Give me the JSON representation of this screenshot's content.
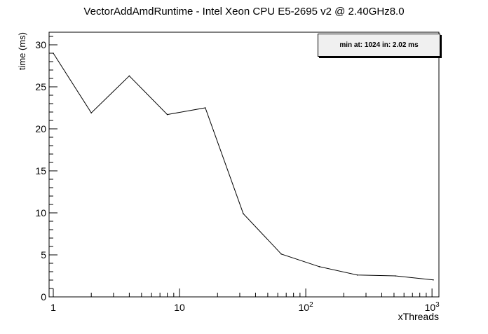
{
  "chart_data": {
    "type": "line",
    "title": "VectorAddAmdRuntime - Intel Xeon CPU E5-2695 v2 @ 2.40GHz8.0",
    "xlabel": "xThreads",
    "ylabel": "time (ms)",
    "x_scale": "log",
    "xlim": [
      1,
      1024
    ],
    "ylim": [
      0,
      31.5
    ],
    "x_ticks": [
      {
        "value": 1,
        "label": "1"
      },
      {
        "value": 10,
        "label": "10"
      },
      {
        "value": 100,
        "label": "10",
        "exp": "2"
      },
      {
        "value": 1000,
        "label": "10",
        "exp": "3"
      }
    ],
    "y_ticks": [
      0,
      5,
      10,
      15,
      20,
      25,
      30
    ],
    "grid": false,
    "legend_placement": "top-right",
    "annotation": "min at: 1024 in: 2.02 ms",
    "series": [
      {
        "x": [
          1,
          2,
          4,
          8,
          16,
          32,
          64,
          128,
          256,
          512,
          1024
        ],
        "y": [
          29.0,
          21.9,
          26.3,
          21.7,
          22.5,
          9.9,
          5.1,
          3.6,
          2.6,
          2.5,
          2.02
        ],
        "color": "#000000"
      }
    ]
  }
}
